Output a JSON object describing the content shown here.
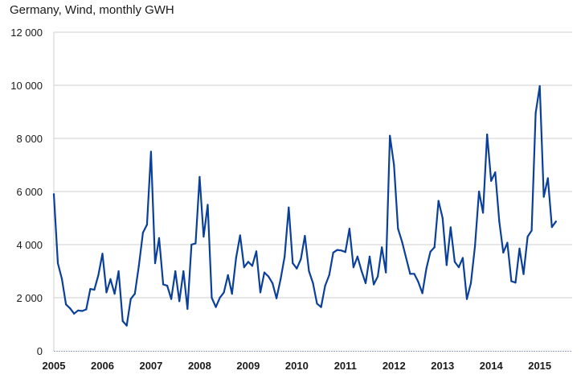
{
  "chart_data": {
    "type": "line",
    "title": "Germany, Wind, monthly GWH",
    "xlabel": "",
    "ylabel": "",
    "ylim": [
      0,
      12000
    ],
    "yticks": [
      0,
      2000,
      4000,
      6000,
      8000,
      10000,
      12000
    ],
    "ytick_labels": [
      "0",
      "2 000",
      "4 000",
      "6 000",
      "8 000",
      "10 000",
      "12 000"
    ],
    "xticks": [
      "2005",
      "2006",
      "2007",
      "2008",
      "2009",
      "2010",
      "2011",
      "2012",
      "2013",
      "2014",
      "2015"
    ],
    "start": "2005-01",
    "grid": true,
    "color": "#0a3f9a",
    "series": [
      {
        "values": [
          5900,
          3300,
          2700,
          1750,
          1600,
          1400,
          1520,
          1500,
          1560,
          2330,
          2300,
          2850,
          3660,
          2200,
          2700,
          2150,
          3000,
          1120,
          950,
          1950,
          2150,
          3200,
          4450,
          4750,
          7500,
          3300,
          4250,
          2500,
          2450,
          1950,
          3000,
          1870,
          3000,
          1580,
          4000,
          4050,
          6550,
          4300,
          5500,
          2000,
          1650,
          2000,
          2200,
          2850,
          2150,
          3500,
          4350,
          3150,
          3350,
          3200,
          3750,
          2200,
          2950,
          2800,
          2550,
          1980,
          2700,
          3550,
          5400,
          3300,
          3100,
          3450,
          4330,
          3000,
          2550,
          1780,
          1650,
          2450,
          2850,
          3700,
          3800,
          3780,
          3720,
          4600,
          3150,
          3550,
          3000,
          2550,
          3550,
          2500,
          2800,
          3900,
          2950,
          8100,
          7000,
          4600,
          4100,
          3500,
          2900,
          2900,
          2600,
          2170,
          3100,
          3730,
          3900,
          5650,
          5000,
          3230,
          4650,
          3350,
          3150,
          3500,
          1950,
          2550,
          3950,
          6000,
          5200,
          8150,
          6400,
          6720,
          4880,
          3700,
          4070,
          2620,
          2570,
          3850,
          2890,
          4300,
          4530,
          8950,
          9970,
          5800,
          6500,
          4660,
          4870
        ]
      }
    ]
  }
}
